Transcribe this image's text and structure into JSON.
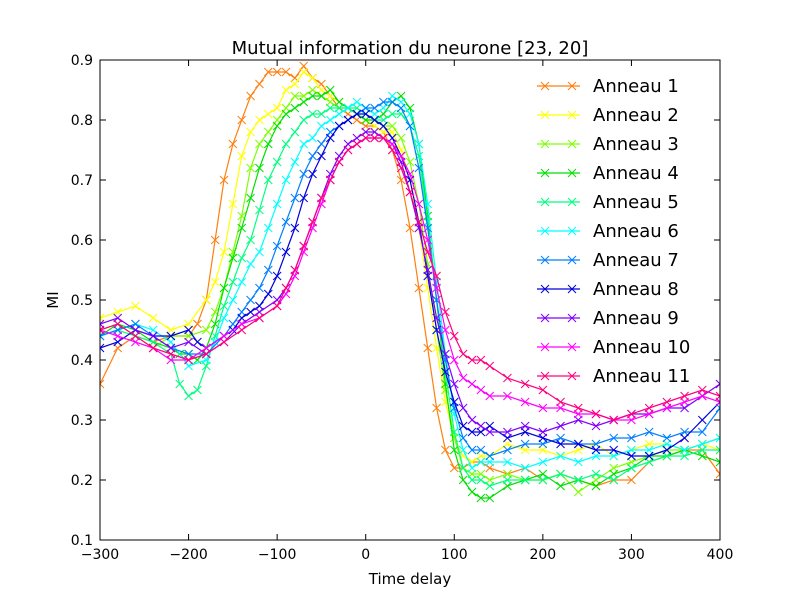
{
  "chart_data": {
    "type": "line",
    "title": "Mutual information du neurone [23, 20]",
    "xlabel": "Time delay",
    "ylabel": "MI",
    "xlim": [
      -300,
      400
    ],
    "ylim": [
      0.1,
      0.9
    ],
    "xticks": [
      -300,
      -200,
      -100,
      0,
      100,
      200,
      300,
      400
    ],
    "xtick_labels": [
      "−300",
      "−200",
      "−100",
      "0",
      "100",
      "200",
      "300",
      "400"
    ],
    "yticks": [
      0.1,
      0.2,
      0.3,
      0.4,
      0.5,
      0.6,
      0.7,
      0.8,
      0.9
    ],
    "ytick_labels": [
      "0.1",
      "0.2",
      "0.3",
      "0.4",
      "0.5",
      "0.6",
      "0.7",
      "0.8",
      "0.9"
    ],
    "grid": false,
    "legend_position": "top-right",
    "marker": "x",
    "series": [
      {
        "name": "Anneau 1",
        "color": "#ff7f0e",
        "x": [
          -300,
          -280,
          -260,
          -240,
          -220,
          -200,
          -190,
          -180,
          -170,
          -160,
          -150,
          -140,
          -130,
          -120,
          -110,
          -100,
          -90,
          -80,
          -70,
          -60,
          -50,
          -40,
          -30,
          -20,
          -10,
          0,
          10,
          20,
          30,
          40,
          50,
          60,
          70,
          80,
          90,
          100,
          110,
          120,
          130,
          140,
          160,
          180,
          200,
          220,
          240,
          260,
          280,
          300,
          320,
          340,
          360,
          380,
          400
        ],
        "y": [
          0.36,
          0.42,
          0.44,
          0.43,
          0.44,
          0.44,
          0.46,
          0.5,
          0.6,
          0.7,
          0.76,
          0.8,
          0.84,
          0.86,
          0.88,
          0.88,
          0.88,
          0.87,
          0.89,
          0.87,
          0.86,
          0.84,
          0.82,
          0.81,
          0.8,
          0.79,
          0.79,
          0.78,
          0.75,
          0.7,
          0.62,
          0.52,
          0.42,
          0.32,
          0.25,
          0.22,
          0.22,
          0.23,
          0.23,
          0.22,
          0.21,
          0.22,
          0.2,
          0.21,
          0.2,
          0.19,
          0.2,
          0.2,
          0.23,
          0.24,
          0.25,
          0.25,
          0.21
        ]
      },
      {
        "name": "Anneau 2",
        "color": "#ffff00",
        "x": [
          -300,
          -280,
          -260,
          -240,
          -220,
          -200,
          -180,
          -170,
          -160,
          -150,
          -140,
          -130,
          -120,
          -110,
          -100,
          -90,
          -80,
          -70,
          -60,
          -50,
          -40,
          -30,
          -20,
          -10,
          0,
          10,
          20,
          30,
          40,
          50,
          60,
          70,
          80,
          90,
          100,
          110,
          120,
          130,
          140,
          160,
          180,
          200,
          220,
          240,
          260,
          280,
          300,
          320,
          340,
          360,
          380,
          400
        ],
        "y": [
          0.47,
          0.48,
          0.49,
          0.47,
          0.45,
          0.46,
          0.5,
          0.53,
          0.58,
          0.66,
          0.74,
          0.78,
          0.8,
          0.81,
          0.82,
          0.85,
          0.86,
          0.88,
          0.87,
          0.85,
          0.84,
          0.83,
          0.82,
          0.81,
          0.8,
          0.79,
          0.78,
          0.78,
          0.75,
          0.7,
          0.62,
          0.52,
          0.42,
          0.33,
          0.27,
          0.24,
          0.23,
          0.24,
          0.24,
          0.26,
          0.25,
          0.25,
          0.24,
          0.25,
          0.26,
          0.24,
          0.25,
          0.26,
          0.26,
          0.25,
          0.26,
          0.25
        ]
      },
      {
        "name": "Anneau 3",
        "color": "#7fff00",
        "x": [
          -300,
          -280,
          -260,
          -240,
          -220,
          -200,
          -180,
          -170,
          -160,
          -150,
          -140,
          -130,
          -120,
          -110,
          -100,
          -90,
          -80,
          -70,
          -60,
          -50,
          -40,
          -30,
          -20,
          -10,
          0,
          10,
          20,
          30,
          40,
          50,
          60,
          70,
          80,
          90,
          100,
          110,
          120,
          130,
          140,
          160,
          180,
          200,
          220,
          240,
          260,
          280,
          300,
          320,
          340,
          360,
          380,
          400
        ],
        "y": [
          0.45,
          0.46,
          0.44,
          0.42,
          0.44,
          0.44,
          0.45,
          0.48,
          0.52,
          0.58,
          0.64,
          0.72,
          0.76,
          0.78,
          0.8,
          0.82,
          0.84,
          0.84,
          0.85,
          0.84,
          0.83,
          0.82,
          0.82,
          0.81,
          0.8,
          0.8,
          0.79,
          0.79,
          0.77,
          0.73,
          0.66,
          0.56,
          0.45,
          0.35,
          0.27,
          0.22,
          0.21,
          0.21,
          0.2,
          0.21,
          0.2,
          0.2,
          0.21,
          0.18,
          0.2,
          0.22,
          0.23,
          0.24,
          0.25,
          0.25,
          0.26,
          0.27
        ]
      },
      {
        "name": "Anneau 4",
        "color": "#00e000",
        "x": [
          -300,
          -280,
          -260,
          -240,
          -220,
          -210,
          -200,
          -190,
          -180,
          -170,
          -160,
          -150,
          -140,
          -130,
          -120,
          -110,
          -100,
          -90,
          -80,
          -70,
          -60,
          -50,
          -40,
          -30,
          -20,
          -10,
          0,
          10,
          20,
          30,
          40,
          50,
          60,
          70,
          80,
          90,
          100,
          110,
          120,
          130,
          140,
          160,
          180,
          200,
          220,
          240,
          260,
          280,
          300,
          320,
          340,
          360,
          380,
          400
        ],
        "y": [
          0.44,
          0.46,
          0.45,
          0.43,
          0.42,
          0.41,
          0.41,
          0.4,
          0.42,
          0.46,
          0.52,
          0.57,
          0.62,
          0.67,
          0.72,
          0.76,
          0.79,
          0.81,
          0.82,
          0.83,
          0.84,
          0.84,
          0.85,
          0.83,
          0.82,
          0.81,
          0.8,
          0.8,
          0.81,
          0.83,
          0.84,
          0.82,
          0.76,
          0.64,
          0.5,
          0.36,
          0.25,
          0.2,
          0.18,
          0.17,
          0.17,
          0.19,
          0.2,
          0.21,
          0.19,
          0.2,
          0.19,
          0.21,
          0.22,
          0.24,
          0.24,
          0.25,
          0.24,
          0.23
        ]
      },
      {
        "name": "Anneau 5",
        "color": "#00ff7f",
        "x": [
          -300,
          -280,
          -260,
          -240,
          -220,
          -210,
          -200,
          -190,
          -180,
          -170,
          -160,
          -150,
          -140,
          -130,
          -120,
          -110,
          -100,
          -90,
          -80,
          -70,
          -60,
          -50,
          -40,
          -30,
          -20,
          -10,
          0,
          10,
          20,
          30,
          40,
          50,
          60,
          70,
          80,
          90,
          100,
          110,
          120,
          130,
          140,
          160,
          180,
          200,
          220,
          240,
          260,
          280,
          300,
          320,
          340,
          360,
          380,
          400
        ],
        "y": [
          0.44,
          0.45,
          0.44,
          0.43,
          0.41,
          0.36,
          0.34,
          0.35,
          0.39,
          0.44,
          0.49,
          0.53,
          0.57,
          0.6,
          0.65,
          0.7,
          0.73,
          0.76,
          0.78,
          0.8,
          0.81,
          0.81,
          0.82,
          0.82,
          0.82,
          0.82,
          0.81,
          0.8,
          0.8,
          0.81,
          0.81,
          0.79,
          0.74,
          0.63,
          0.5,
          0.38,
          0.28,
          0.22,
          0.2,
          0.2,
          0.19,
          0.2,
          0.2,
          0.2,
          0.21,
          0.2,
          0.21,
          0.2,
          0.22,
          0.23,
          0.24,
          0.24,
          0.25,
          0.25
        ]
      },
      {
        "name": "Anneau 6",
        "color": "#00ffff",
        "x": [
          -300,
          -280,
          -260,
          -240,
          -220,
          -200,
          -180,
          -170,
          -160,
          -150,
          -140,
          -130,
          -120,
          -110,
          -100,
          -90,
          -80,
          -70,
          -60,
          -50,
          -40,
          -30,
          -20,
          -10,
          0,
          10,
          20,
          30,
          40,
          50,
          60,
          70,
          80,
          90,
          100,
          110,
          120,
          130,
          140,
          160,
          180,
          200,
          220,
          240,
          260,
          280,
          300,
          320,
          340,
          360,
          380,
          400
        ],
        "y": [
          0.44,
          0.45,
          0.46,
          0.45,
          0.43,
          0.39,
          0.4,
          0.43,
          0.47,
          0.5,
          0.53,
          0.56,
          0.58,
          0.62,
          0.66,
          0.7,
          0.73,
          0.76,
          0.77,
          0.79,
          0.8,
          0.81,
          0.82,
          0.83,
          0.82,
          0.81,
          0.82,
          0.84,
          0.83,
          0.81,
          0.76,
          0.66,
          0.53,
          0.41,
          0.31,
          0.25,
          0.22,
          0.23,
          0.23,
          0.23,
          0.22,
          0.23,
          0.24,
          0.23,
          0.24,
          0.24,
          0.25,
          0.25,
          0.26,
          0.25,
          0.26,
          0.27
        ]
      },
      {
        "name": "Anneau 7",
        "color": "#007fff",
        "x": [
          -300,
          -280,
          -260,
          -240,
          -220,
          -200,
          -180,
          -160,
          -150,
          -140,
          -130,
          -120,
          -110,
          -100,
          -90,
          -80,
          -70,
          -60,
          -50,
          -40,
          -30,
          -20,
          -10,
          0,
          10,
          20,
          30,
          40,
          50,
          60,
          70,
          80,
          90,
          100,
          110,
          120,
          130,
          140,
          160,
          180,
          200,
          220,
          240,
          260,
          280,
          300,
          320,
          340,
          360,
          380,
          400
        ],
        "y": [
          0.44,
          0.45,
          0.46,
          0.44,
          0.42,
          0.41,
          0.41,
          0.44,
          0.46,
          0.48,
          0.5,
          0.52,
          0.55,
          0.59,
          0.63,
          0.67,
          0.71,
          0.74,
          0.76,
          0.78,
          0.79,
          0.8,
          0.81,
          0.82,
          0.82,
          0.83,
          0.83,
          0.82,
          0.79,
          0.72,
          0.62,
          0.5,
          0.4,
          0.32,
          0.27,
          0.25,
          0.25,
          0.24,
          0.25,
          0.26,
          0.26,
          0.27,
          0.26,
          0.26,
          0.27,
          0.27,
          0.28,
          0.27,
          0.28,
          0.28,
          0.32
        ]
      },
      {
        "name": "Anneau 8",
        "color": "#0000dd",
        "x": [
          -300,
          -280,
          -260,
          -240,
          -220,
          -200,
          -190,
          -180,
          -160,
          -150,
          -140,
          -130,
          -120,
          -110,
          -100,
          -90,
          -80,
          -70,
          -60,
          -50,
          -40,
          -30,
          -20,
          -10,
          0,
          10,
          20,
          30,
          40,
          50,
          60,
          70,
          80,
          90,
          100,
          110,
          120,
          130,
          140,
          160,
          180,
          200,
          220,
          240,
          260,
          280,
          300,
          320,
          340,
          360,
          380,
          400
        ],
        "y": [
          0.42,
          0.43,
          0.45,
          0.44,
          0.44,
          0.45,
          0.43,
          0.42,
          0.44,
          0.45,
          0.47,
          0.48,
          0.49,
          0.51,
          0.54,
          0.58,
          0.62,
          0.67,
          0.71,
          0.74,
          0.77,
          0.79,
          0.8,
          0.81,
          0.81,
          0.8,
          0.79,
          0.77,
          0.74,
          0.7,
          0.63,
          0.54,
          0.45,
          0.38,
          0.33,
          0.29,
          0.28,
          0.28,
          0.29,
          0.27,
          0.28,
          0.27,
          0.26,
          0.26,
          0.25,
          0.25,
          0.24,
          0.24,
          0.25,
          0.27,
          0.3,
          0.33
        ]
      },
      {
        "name": "Anneau 9",
        "color": "#7f00ff",
        "x": [
          -300,
          -280,
          -260,
          -240,
          -220,
          -200,
          -180,
          -160,
          -140,
          -120,
          -100,
          -90,
          -80,
          -70,
          -60,
          -50,
          -40,
          -30,
          -20,
          -10,
          0,
          10,
          20,
          30,
          40,
          50,
          60,
          70,
          80,
          90,
          100,
          110,
          120,
          130,
          140,
          160,
          180,
          200,
          220,
          240,
          260,
          280,
          300,
          320,
          340,
          360,
          380,
          400
        ],
        "y": [
          0.46,
          0.47,
          0.45,
          0.44,
          0.42,
          0.43,
          0.41,
          0.43,
          0.46,
          0.48,
          0.5,
          0.52,
          0.55,
          0.59,
          0.63,
          0.67,
          0.71,
          0.74,
          0.76,
          0.77,
          0.78,
          0.78,
          0.77,
          0.76,
          0.73,
          0.68,
          0.62,
          0.55,
          0.47,
          0.41,
          0.36,
          0.32,
          0.3,
          0.29,
          0.28,
          0.28,
          0.29,
          0.28,
          0.29,
          0.3,
          0.29,
          0.3,
          0.31,
          0.31,
          0.32,
          0.32,
          0.34,
          0.36
        ]
      },
      {
        "name": "Anneau 10",
        "color": "#ff00ff",
        "x": [
          -300,
          -280,
          -260,
          -240,
          -220,
          -200,
          -180,
          -160,
          -140,
          -120,
          -100,
          -90,
          -80,
          -70,
          -60,
          -50,
          -40,
          -30,
          -20,
          -10,
          0,
          10,
          20,
          30,
          40,
          50,
          60,
          70,
          80,
          90,
          100,
          110,
          120,
          130,
          140,
          160,
          180,
          200,
          220,
          240,
          260,
          280,
          300,
          320,
          340,
          360,
          380,
          400
        ],
        "y": [
          0.45,
          0.44,
          0.43,
          0.42,
          0.4,
          0.4,
          0.42,
          0.44,
          0.46,
          0.47,
          0.49,
          0.51,
          0.54,
          0.58,
          0.62,
          0.66,
          0.7,
          0.73,
          0.75,
          0.76,
          0.77,
          0.77,
          0.77,
          0.76,
          0.74,
          0.71,
          0.66,
          0.6,
          0.52,
          0.45,
          0.4,
          0.37,
          0.36,
          0.35,
          0.34,
          0.34,
          0.33,
          0.32,
          0.32,
          0.31,
          0.31,
          0.3,
          0.3,
          0.31,
          0.32,
          0.33,
          0.34,
          0.33
        ]
      },
      {
        "name": "Anneau 11",
        "color": "#ff007f",
        "x": [
          -300,
          -280,
          -260,
          -240,
          -220,
          -200,
          -180,
          -160,
          -140,
          -120,
          -100,
          -90,
          -80,
          -70,
          -60,
          -50,
          -40,
          -30,
          -20,
          -10,
          0,
          10,
          20,
          30,
          40,
          50,
          60,
          70,
          80,
          90,
          100,
          110,
          120,
          130,
          140,
          160,
          180,
          200,
          220,
          240,
          260,
          280,
          300,
          320,
          340,
          360,
          380,
          400
        ],
        "y": [
          0.45,
          0.46,
          0.44,
          0.42,
          0.41,
          0.4,
          0.41,
          0.43,
          0.45,
          0.47,
          0.49,
          0.52,
          0.55,
          0.59,
          0.63,
          0.67,
          0.7,
          0.73,
          0.75,
          0.76,
          0.77,
          0.77,
          0.77,
          0.75,
          0.72,
          0.68,
          0.63,
          0.58,
          0.54,
          0.48,
          0.44,
          0.41,
          0.4,
          0.4,
          0.39,
          0.37,
          0.36,
          0.35,
          0.33,
          0.32,
          0.31,
          0.3,
          0.31,
          0.32,
          0.33,
          0.34,
          0.35,
          0.34
        ]
      }
    ]
  }
}
